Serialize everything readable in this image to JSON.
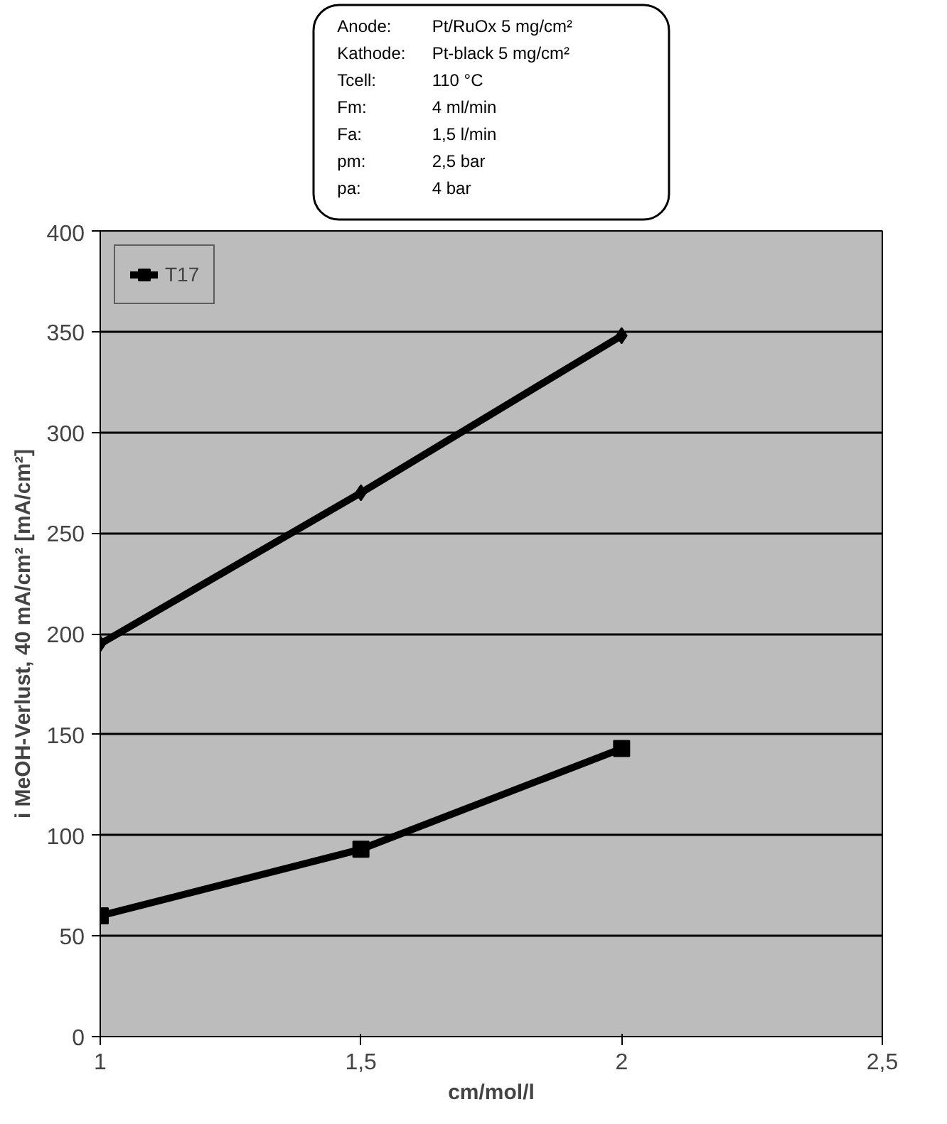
{
  "chart_data": {
    "type": "line",
    "xlabel": "cm/mol/l",
    "ylabel": "i MeOH-Verlust, 40 mA/cm² [mA/cm²]",
    "annotations": [
      "Anode: Pt/RuOx 5 mg/cm²",
      "Kathode: Pt-black 5 mg/cm²",
      "Tcell: 110 °C",
      "Fm: 4 ml/min",
      "Fa: 1,5 l/min",
      "pm: 2,5 bar",
      "pa: 4 bar"
    ],
    "x": [
      1,
      1.5,
      2
    ],
    "series": [
      {
        "color": "#000000",
        "values": [
          195,
          270,
          348
        ],
        "marker": "diamond"
      },
      {
        "name": "T17",
        "color": "#000000",
        "values": [
          60,
          93,
          143
        ],
        "marker": "square"
      }
    ],
    "xlim": [
      1,
      2.5
    ],
    "xticks": [
      1,
      {
        "value": 1.5,
        "label": "1,5"
      },
      2,
      {
        "value": 2.5,
        "label": "2,5"
      }
    ],
    "ylim": [
      0,
      400
    ],
    "yticks": [
      0,
      50,
      100,
      150,
      200,
      250,
      300,
      350,
      400
    ],
    "grid": "y",
    "legend": "top left",
    "line_style": "solid"
  }
}
